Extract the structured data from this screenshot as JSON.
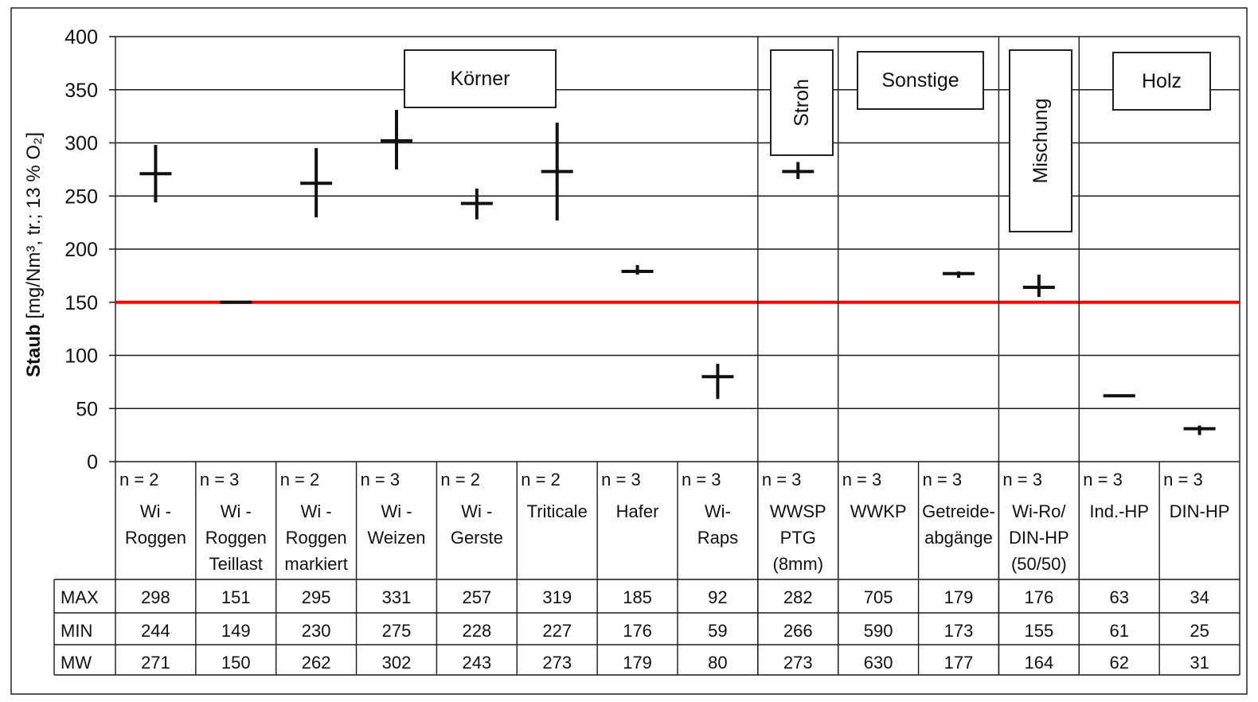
{
  "chart_data": {
    "type": "range",
    "ylabel_main": "Staub",
    "ylabel_unit": " [mg/Nm³, tr.; 13 % O₂]",
    "ylim": [
      0,
      400
    ],
    "yticks": [
      0,
      50,
      100,
      150,
      200,
      250,
      300,
      350,
      400
    ],
    "grid": true,
    "limit_line": {
      "value": 150,
      "color": "#ff0000"
    },
    "categories": [
      {
        "n": "n = 2",
        "label": [
          "Wi -",
          "Roggen"
        ]
      },
      {
        "n": "n = 3",
        "label": [
          "Wi -",
          "Roggen",
          "Teillast"
        ]
      },
      {
        "n": "n = 2",
        "label": [
          "Wi -",
          "Roggen",
          "markiert"
        ]
      },
      {
        "n": "n = 3",
        "label": [
          "Wi -",
          "Weizen"
        ]
      },
      {
        "n": "n = 2",
        "label": [
          "Wi -",
          "Gerste"
        ]
      },
      {
        "n": "n = 2",
        "label": [
          "Triticale"
        ]
      },
      {
        "n": "n = 3",
        "label": [
          "Hafer"
        ]
      },
      {
        "n": "n = 3",
        "label": [
          "Wi-",
          "Raps"
        ]
      },
      {
        "n": "n = 3",
        "label": [
          "WWSP",
          "PTG",
          "(8mm)"
        ]
      },
      {
        "n": "n = 3",
        "label": [
          "WWKP"
        ]
      },
      {
        "n": "n = 3",
        "label": [
          "Getreide-",
          "abgänge"
        ]
      },
      {
        "n": "n = 3",
        "label": [
          "Wi-Ro/",
          "DIN-HP",
          "(50/50)"
        ]
      },
      {
        "n": "n = 3",
        "label": [
          "Ind.-HP"
        ]
      },
      {
        "n": "n = 3",
        "label": [
          "DIN-HP"
        ]
      }
    ],
    "series": [
      {
        "name": "MAX",
        "values": [
          298,
          151,
          295,
          331,
          257,
          319,
          185,
          92,
          282,
          705,
          179,
          176,
          63,
          34
        ]
      },
      {
        "name": "MIN",
        "values": [
          244,
          149,
          230,
          275,
          228,
          227,
          176,
          59,
          266,
          590,
          173,
          155,
          61,
          25
        ]
      },
      {
        "name": "MW",
        "values": [
          271,
          150,
          262,
          302,
          243,
          273,
          179,
          80,
          273,
          630,
          177,
          164,
          62,
          31
        ]
      }
    ],
    "groups": [
      {
        "label": "Körner",
        "vertical": false
      },
      {
        "label": "Stroh",
        "vertical": true
      },
      {
        "label": "Sonstige",
        "vertical": false
      },
      {
        "label": "Mischung",
        "vertical": true
      },
      {
        "label": "Holz",
        "vertical": false
      }
    ]
  }
}
